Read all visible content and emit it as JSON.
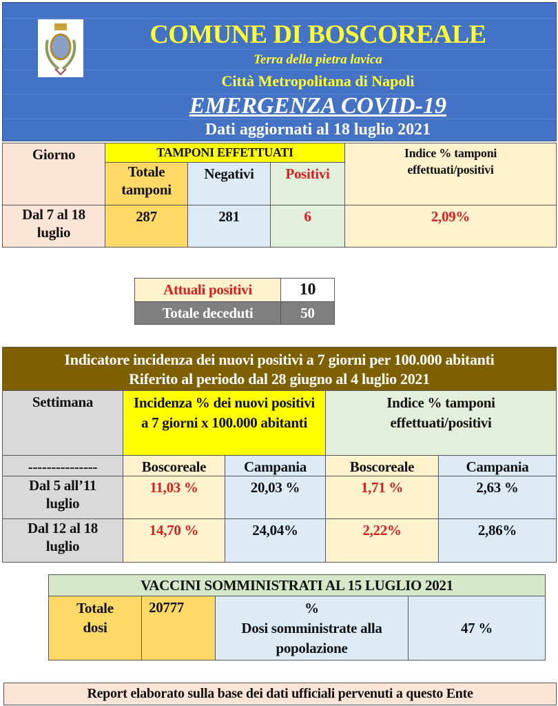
{
  "header": {
    "title": "COMUNE DI BOSCOREALE",
    "motto": "Terra della pietra lavica",
    "city": "Città Metropolitana di Napoli",
    "emergency": "EMERGENZA COVID-19",
    "updated": "Dati aggiornati al 18 luglio 2021",
    "logo": "coat-of-arms"
  },
  "tamponi": {
    "col_giorno": "Giorno",
    "group": "TAMPONI EFFETTUATI",
    "col_totale": "Totale tamponi",
    "col_negativi": "Negativi",
    "col_positivi": "Positivi",
    "col_indice": "Indice % tamponi effettuati/positivi",
    "row": {
      "giorno": "Dal 7 al 18 luglio",
      "totale": "287",
      "negativi": "281",
      "positivi": "6",
      "indice": "2,09%"
    }
  },
  "summary": {
    "attuali_label": "Attuali positivi",
    "attuali_value": "10",
    "deceduti_label": "Totale deceduti",
    "deceduti_value": "50"
  },
  "incidenza": {
    "title1": "Indicatore incidenza dei nuovi positivi a 7 giorni per 100.000 abitanti",
    "title2": "Riferito al periodo dal 28 giugno al 4 luglio 2021",
    "col_settimana": "Settimana",
    "col_incidenza": "Incidenza  % dei nuovi positivi a 7 giorni x 100.000 abitanti",
    "col_indice": "Indice % tamponi effettuati/positivi",
    "sub_dash": "---------------",
    "sub": [
      "Boscoreale",
      "Campania",
      "Boscoreale",
      "Campania"
    ],
    "rows": [
      {
        "settimana": "Dal 5 all’11 luglio",
        "values": [
          "11,03 %",
          "20,03 %",
          "1,71 %",
          "2,63 %"
        ]
      },
      {
        "settimana": "Dal 12 al 18 luglio",
        "values": [
          "14,70 %",
          "24,04%",
          "2,22%",
          "2,86%"
        ]
      }
    ]
  },
  "vaccini": {
    "title": "VACCINI SOMMINISTRATI AL 15 LUGLIO 2021",
    "totale_label": "Totale dosi",
    "totale_value": "20777",
    "perc_label_1": "%",
    "perc_label_2": "Dosi somministrate alla popolazione",
    "perc_value": "47 %"
  },
  "footer": "Report elaborato sulla base dei dati ufficiali pervenuti a questo Ente",
  "colors": {
    "header_blue": "#4472c4",
    "title_yellow": "#ffff33",
    "brown": "#7f6000",
    "red": "#d42020"
  }
}
